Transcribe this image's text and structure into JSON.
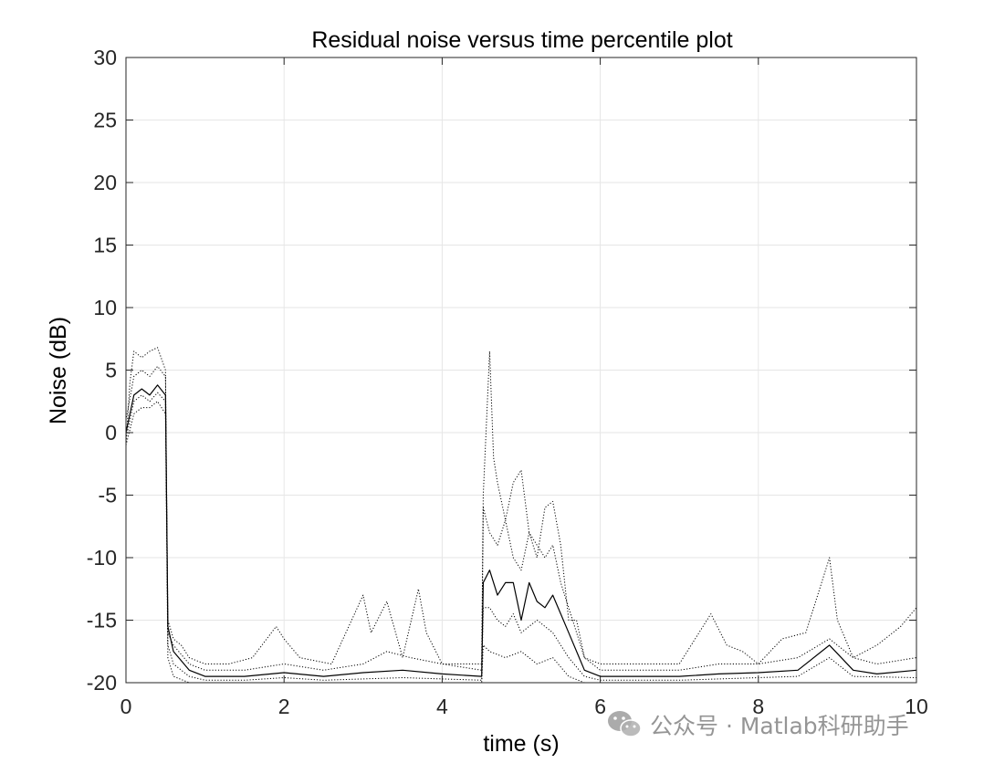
{
  "chart_data": {
    "type": "line",
    "title": "Residual noise versus time percentile plot",
    "xlabel": "time (s)",
    "ylabel": "Noise (dB)",
    "xlim": [
      0,
      10
    ],
    "ylim": [
      -20,
      30
    ],
    "xticks": [
      "0",
      "2",
      "4",
      "6",
      "8",
      "10"
    ],
    "yticks": [
      "-20",
      "-15",
      "-10",
      "-5",
      "0",
      "5",
      "10",
      "15",
      "20",
      "25",
      "30"
    ],
    "grid": true,
    "line_color": "#000000",
    "series": [
      {
        "style": "dotted",
        "x": [
          0,
          0.05,
          0.1,
          0.2,
          0.3,
          0.4,
          0.5,
          0.53,
          0.6,
          0.7,
          0.8,
          1.0,
          1.3,
          1.6,
          1.9,
          2.0,
          2.2,
          2.6,
          3.0,
          3.1,
          3.3,
          3.5,
          3.7,
          3.8,
          4.0,
          4.2,
          4.5,
          4.52,
          4.6,
          4.65,
          4.7,
          4.8,
          4.9,
          5.0,
          5.1,
          5.2,
          5.3,
          5.4,
          5.5,
          5.6,
          5.7,
          5.8,
          6.0,
          6.5,
          7.0,
          7.4,
          7.6,
          7.8,
          8.0,
          8.3,
          8.6,
          8.8,
          8.9,
          9.0,
          9.2,
          9.5,
          9.8,
          10.0
        ],
        "values": [
          -1,
          4,
          6.5,
          6,
          6.5,
          6.8,
          5,
          -15,
          -16.5,
          -17,
          -18,
          -18.5,
          -18.5,
          -18,
          -15.5,
          -16.5,
          -18,
          -18.5,
          -13,
          -16,
          -13.5,
          -18,
          -12.5,
          -16,
          -18.5,
          -18.5,
          -18.5,
          -5,
          6.5,
          -2,
          -4,
          -7,
          -4,
          -3,
          -8,
          -10,
          -6,
          -5.5,
          -9,
          -15,
          -15,
          -18,
          -18.5,
          -18.5,
          -18.5,
          -14.5,
          -17,
          -17.5,
          -18.5,
          -16.5,
          -16,
          -12,
          -10,
          -15,
          -18,
          -17,
          -15.5,
          -14
        ]
      },
      {
        "style": "dotted",
        "x": [
          0,
          0.1,
          0.2,
          0.3,
          0.4,
          0.5,
          0.53,
          0.6,
          0.8,
          1.0,
          1.5,
          2.0,
          2.5,
          3.0,
          3.3,
          3.6,
          4.0,
          4.5,
          4.52,
          4.6,
          4.7,
          4.8,
          4.9,
          5.0,
          5.1,
          5.2,
          5.3,
          5.4,
          5.5,
          5.6,
          5.8,
          6.0,
          6.5,
          7.0,
          7.5,
          8.0,
          8.5,
          8.9,
          9.2,
          9.5,
          10.0
        ],
        "values": [
          1,
          4.5,
          5,
          4.5,
          5.3,
          4.5,
          -16,
          -17,
          -18.5,
          -19,
          -19,
          -18.5,
          -19,
          -18.5,
          -17.5,
          -18,
          -18.5,
          -19,
          -6,
          -8,
          -9,
          -7,
          -10,
          -11,
          -8,
          -9,
          -10,
          -9,
          -12,
          -14,
          -18,
          -19,
          -19,
          -19,
          -18.5,
          -18.5,
          -18,
          -16.5,
          -18,
          -18.5,
          -18
        ]
      },
      {
        "style": "solid",
        "x": [
          0,
          0.1,
          0.2,
          0.3,
          0.4,
          0.5,
          0.53,
          0.6,
          0.8,
          1.0,
          1.5,
          2.0,
          2.5,
          3.0,
          3.5,
          4.0,
          4.5,
          4.52,
          4.6,
          4.7,
          4.8,
          4.9,
          5.0,
          5.1,
          5.2,
          5.3,
          5.4,
          5.5,
          5.6,
          5.8,
          6.0,
          6.5,
          7.0,
          7.5,
          8.0,
          8.5,
          8.9,
          9.2,
          9.5,
          10.0
        ],
        "values": [
          0,
          3,
          3.5,
          3,
          3.8,
          3,
          -15.5,
          -17.5,
          -19,
          -19.5,
          -19.5,
          -19.2,
          -19.5,
          -19.2,
          -19,
          -19.3,
          -19.5,
          -12,
          -11,
          -13,
          -12,
          -12,
          -15,
          -12,
          -13.5,
          -14,
          -13,
          -14.5,
          -16,
          -19,
          -19.5,
          -19.5,
          -19.5,
          -19.3,
          -19.2,
          -19,
          -17,
          -19,
          -19.3,
          -19
        ]
      },
      {
        "style": "dotted",
        "x": [
          0,
          0.1,
          0.2,
          0.3,
          0.4,
          0.5,
          0.53,
          0.6,
          0.8,
          1.0,
          1.5,
          2.0,
          2.5,
          3.0,
          3.5,
          4.0,
          4.5,
          4.52,
          4.6,
          4.7,
          4.8,
          4.9,
          5.0,
          5.2,
          5.4,
          5.5,
          5.6,
          5.8,
          6.0,
          6.5,
          7.0,
          7.5,
          8.0,
          8.5,
          8.9,
          9.2,
          10.0
        ],
        "values": [
          -0.5,
          2.5,
          3,
          2.5,
          3.2,
          2.5,
          -17,
          -18.5,
          -19.5,
          -19.8,
          -19.8,
          -19.6,
          -19.8,
          -19.7,
          -19.6,
          -19.7,
          -19.8,
          -14,
          -14,
          -15,
          -15.5,
          -14.5,
          -16,
          -15,
          -16,
          -17,
          -18,
          -19.5,
          -19.8,
          -19.8,
          -19.8,
          -19.7,
          -19.6,
          -19.5,
          -18,
          -19.5,
          -19.6
        ]
      },
      {
        "style": "dotted",
        "x": [
          0,
          0.1,
          0.2,
          0.3,
          0.4,
          0.5,
          0.53,
          0.6,
          0.8,
          1.0,
          2.0,
          3.0,
          4.0,
          4.5,
          4.52,
          4.6,
          4.8,
          5.0,
          5.2,
          5.4,
          5.6,
          5.8,
          6.0,
          7.0,
          8.0,
          9.0,
          10.0
        ],
        "values": [
          -1,
          1.5,
          2,
          2,
          2.5,
          1.5,
          -18,
          -19.5,
          -20,
          -20,
          -20,
          -20,
          -20,
          -20,
          -17,
          -17.5,
          -18,
          -17.5,
          -18.5,
          -18,
          -19.5,
          -20,
          -20,
          -20,
          -20,
          -20,
          -20
        ]
      }
    ]
  },
  "watermark": {
    "icon": "wechat-icon",
    "text": "公众号 · Matlab科研助手"
  }
}
